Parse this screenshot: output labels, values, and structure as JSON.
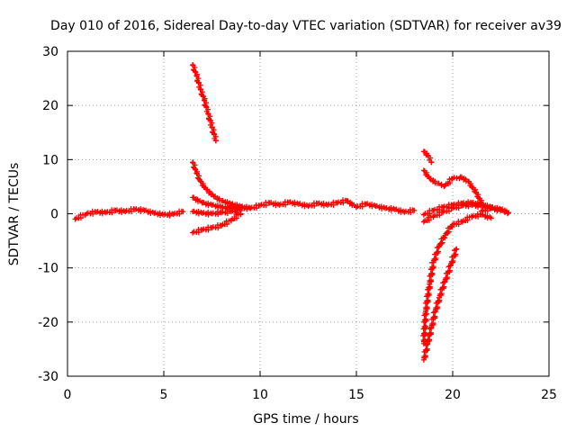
{
  "colors": {
    "series": "#ff0000",
    "grid": "#a0a0a0",
    "axis": "#000000",
    "background": "#ffffff"
  },
  "chart_data": {
    "type": "scatter",
    "title": "Day 010 of 2016, Sidereal Day-to-day VTEC variation (SDTVAR) for receiver av39",
    "xlabel": "GPS time / hours",
    "ylabel": "SDTVAR / TECUs",
    "xlim": [
      0,
      25
    ],
    "ylim": [
      -30,
      30
    ],
    "xticks": [
      0,
      5,
      10,
      15,
      20,
      25
    ],
    "yticks": [
      -30,
      -20,
      -10,
      0,
      10,
      20,
      30
    ],
    "grid": true,
    "marker": "+",
    "series": [
      {
        "name": "SDTVAR segments",
        "segments": [
          {
            "x": [
              0.4,
              1.0,
              1.5,
              2.0,
              2.5,
              3.0,
              3.5,
              4.0,
              4.5,
              5.0,
              5.5,
              6.0
            ],
            "y": [
              -1.0,
              0.0,
              0.3,
              0.2,
              0.6,
              0.4,
              0.8,
              0.6,
              0.1,
              -0.2,
              -0.1,
              0.4
            ]
          },
          {
            "x": [
              6.5,
              6.7,
              6.9,
              7.1,
              7.3,
              7.5,
              7.7
            ],
            "y": [
              27.5,
              25.5,
              23.0,
              21.0,
              18.5,
              16.0,
              13.5
            ]
          },
          {
            "x": [
              6.5,
              6.7,
              6.9,
              7.2,
              7.6,
              8.0,
              8.5,
              9.0,
              9.5
            ],
            "y": [
              9.5,
              7.5,
              6.0,
              4.5,
              3.2,
              2.4,
              1.8,
              1.3,
              1.0
            ]
          },
          {
            "x": [
              6.5,
              7.0,
              7.5,
              8.0,
              8.5,
              9.0
            ],
            "y": [
              3.0,
              2.0,
              1.6,
              1.2,
              1.0,
              0.9
            ]
          },
          {
            "x": [
              6.5,
              7.0,
              7.5,
              8.0,
              8.5,
              9.0
            ],
            "y": [
              0.4,
              0.1,
              0.0,
              0.2,
              0.4,
              0.6
            ]
          },
          {
            "x": [
              6.5,
              7.0,
              7.5,
              8.0,
              8.5,
              9.0
            ],
            "y": [
              -3.5,
              -3.0,
              -2.6,
              -2.2,
              -1.2,
              0.0
            ]
          },
          {
            "x": [
              8.5,
              9.0,
              9.5,
              10.0,
              10.5,
              11.0,
              11.5,
              12.0,
              12.5,
              13.0,
              13.5,
              14.0,
              14.5,
              15.0,
              15.5,
              16.0,
              16.5,
              17.0,
              17.5,
              18.0
            ],
            "y": [
              1.5,
              1.2,
              1.0,
              1.5,
              2.0,
              1.6,
              2.1,
              1.8,
              1.4,
              1.9,
              1.6,
              2.0,
              2.4,
              1.2,
              1.8,
              1.4,
              1.0,
              0.8,
              0.3,
              0.6
            ]
          },
          {
            "x": [
              18.5,
              18.7,
              18.9
            ],
            "y": [
              11.5,
              10.8,
              9.5
            ]
          },
          {
            "x": [
              18.5,
              18.8,
              19.2,
              19.6,
              20.0,
              20.4,
              20.8,
              21.2,
              21.5
            ],
            "y": [
              8.0,
              6.5,
              5.6,
              5.2,
              6.5,
              6.8,
              6.0,
              4.0,
              2.0
            ]
          },
          {
            "x": [
              18.5,
              19.0,
              19.5,
              20.0,
              20.5,
              21.0,
              21.5,
              22.0,
              22.5,
              22.8
            ],
            "y": [
              -1.5,
              -0.5,
              0.3,
              1.0,
              1.5,
              1.6,
              1.4,
              1.0,
              0.8,
              0.5
            ]
          },
          {
            "x": [
              18.5,
              19.0,
              19.5,
              20.0,
              20.5,
              21.0,
              21.5,
              22.0,
              22.5
            ],
            "y": [
              -0.2,
              0.6,
              1.2,
              1.6,
              1.9,
              2.0,
              1.7,
              1.2,
              0.7
            ]
          },
          {
            "x": [
              18.5,
              18.6,
              18.8,
              19.0,
              19.3,
              19.6,
              20.0,
              20.5,
              21.0,
              21.5,
              22.0
            ],
            "y": [
              -24.0,
              -18.0,
              -13.0,
              -9.0,
              -6.0,
              -4.0,
              -2.0,
              -1.5,
              -0.5,
              -0.2,
              -0.8
            ]
          },
          {
            "x": [
              18.5,
              18.7,
              18.9,
              19.1,
              19.3,
              19.6,
              19.9,
              20.2
            ],
            "y": [
              -27.0,
              -24.0,
              -21.0,
              -18.0,
              -15.5,
              -12.5,
              -9.5,
              -6.5
            ]
          },
          {
            "x": [
              21.5,
              22.0,
              22.5,
              22.9
            ],
            "y": [
              0.5,
              1.0,
              0.6,
              0.2
            ]
          }
        ]
      }
    ]
  }
}
